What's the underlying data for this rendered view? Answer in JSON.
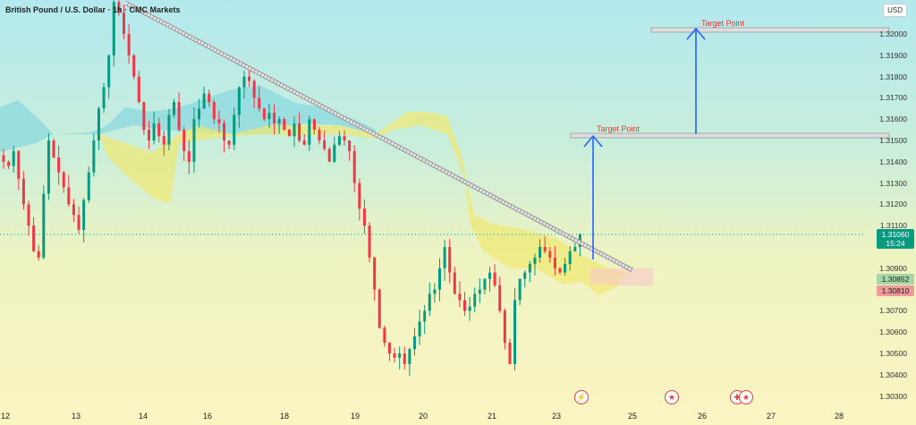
{
  "header": {
    "title": "British Pound / U.S. Dollar · 1h · CMC Markets"
  },
  "price_axis": {
    "currency": "USD",
    "labels": [
      "1.32000",
      "1.31900",
      "1.31800",
      "1.31700",
      "1.31600",
      "1.31500",
      "1.31400",
      "1.31300",
      "1.31200",
      "1.31100",
      "1.30900",
      "1.30700",
      "1.30600",
      "1.30500",
      "1.30400",
      "1.30300"
    ]
  },
  "time_axis": {
    "labels": [
      "12",
      "13",
      "14",
      "16",
      "18",
      "19",
      "20",
      "21",
      "23",
      "25",
      "26",
      "27",
      "28"
    ]
  },
  "current_price": {
    "value": "1.31060",
    "countdown": "15:24",
    "color": "#089981"
  },
  "price_tags": [
    {
      "value": "1.30852",
      "color": "#a5d6a7"
    },
    {
      "value": "1.30810",
      "color": "#ef9a9a"
    }
  ],
  "annotations": {
    "target_1": "Target Point",
    "target_2": "Target Point"
  },
  "events": [
    "flash-news-icon",
    "us-flag-icon",
    "uk-flag-icon"
  ],
  "colors": {
    "up": "#089981",
    "down": "#f23645",
    "arrow": "#2962ff",
    "target": "#e53935"
  },
  "closes": [
    1.314,
    1.3138,
    1.3145,
    1.3132,
    1.312,
    1.311,
    1.3098,
    1.3095,
    1.3125,
    1.315,
    1.3142,
    1.3135,
    1.3128,
    1.312,
    1.3115,
    1.3108,
    1.3122,
    1.3135,
    1.315,
    1.3165,
    1.3175,
    1.319,
    1.3215,
    1.321,
    1.32,
    1.319,
    1.318,
    1.3168,
    1.3155,
    1.315,
    1.3158,
    1.3152,
    1.3148,
    1.3162,
    1.3168,
    1.3155,
    1.3145,
    1.314,
    1.316,
    1.3165,
    1.3172,
    1.3168,
    1.316,
    1.3158,
    1.315,
    1.3148,
    1.3162,
    1.3175,
    1.318,
    1.3178,
    1.317,
    1.3165,
    1.316,
    1.3163,
    1.3158,
    1.316,
    1.3155,
    1.3152,
    1.3158,
    1.315,
    1.3148,
    1.316,
    1.3155,
    1.315,
    1.3146,
    1.314,
    1.3148,
    1.3152,
    1.315,
    1.3145,
    1.313,
    1.3118,
    1.311,
    1.3095,
    1.308,
    1.3062,
    1.3055,
    1.305,
    1.3048,
    1.305,
    1.3045,
    1.3052,
    1.3058,
    1.3065,
    1.307,
    1.3078,
    1.308,
    1.309,
    1.31,
    1.3088,
    1.3078,
    1.3075,
    1.307,
    1.3072,
    1.3078,
    1.308,
    1.3085,
    1.3088,
    1.3082,
    1.307,
    1.3055,
    1.3045,
    1.3075,
    1.3085,
    1.3088,
    1.3092,
    1.3095,
    1.31,
    1.3098,
    1.3095,
    1.309,
    1.3088,
    1.3092,
    1.3098,
    1.31,
    1.3106
  ]
}
